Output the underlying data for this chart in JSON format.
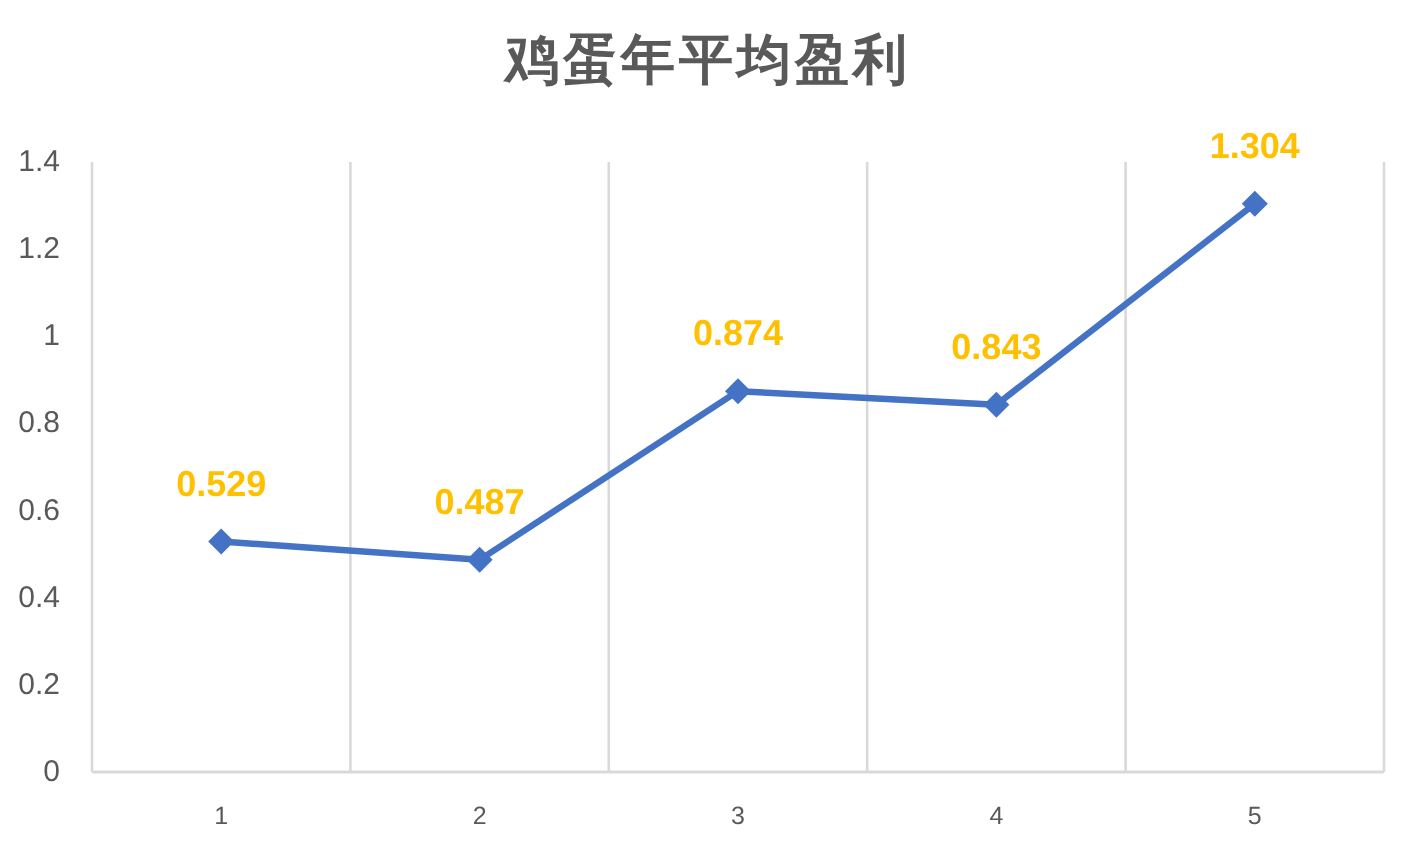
{
  "chart_data": {
    "type": "line",
    "title": "鸡蛋年平均盈利",
    "categories": [
      "1",
      "2",
      "3",
      "4",
      "5"
    ],
    "series": [
      {
        "color": "#4472c4",
        "values": [
          0.529,
          0.487,
          0.874,
          0.843,
          1.304
        ]
      }
    ],
    "ylim": [
      0,
      1.4
    ],
    "yticks": [
      0,
      0.2,
      0.4,
      0.6,
      0.8,
      1,
      1.2,
      1.4
    ],
    "grid": "x",
    "marker": "diamond",
    "line_style": "solid",
    "data_labels": true
  }
}
